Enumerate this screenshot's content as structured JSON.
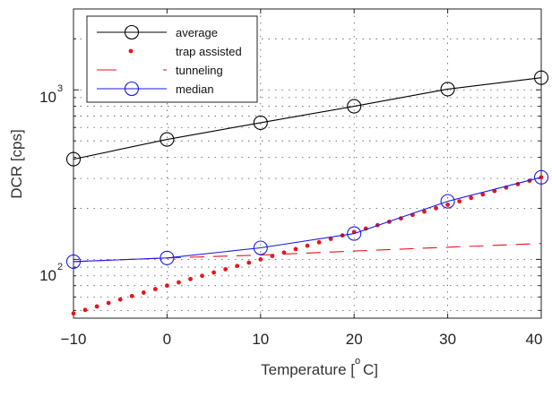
{
  "chart_data": {
    "type": "line",
    "xlabel": "Temperature [",
    "xlabel_unit": "C]",
    "xlabel_degree": "o",
    "ylabel": "DCR [cps]",
    "x_ticks": [
      "-10",
      "0",
      "10",
      "20",
      "30",
      "40"
    ],
    "x_tick_display": [
      "−10",
      "0",
      "10",
      "20",
      "30",
      "40"
    ],
    "y_tick_base": "10",
    "y_tick_exponents": [
      "2",
      "3"
    ],
    "xlim": [
      -10,
      40
    ],
    "ylim": [
      45,
      3000
    ],
    "yscale": "log",
    "grid": true,
    "legend_position": "top-left",
    "series": [
      {
        "name": "average",
        "style": "line-circle",
        "color": "#000000",
        "x": [
          -10,
          0,
          10,
          20,
          30,
          40
        ],
        "y": [
          390,
          510,
          640,
          800,
          1010,
          1180
        ]
      },
      {
        "name": "trap assisted",
        "style": "dotted",
        "color": "#e8141c",
        "x": [
          -10,
          0,
          10,
          20,
          30,
          40
        ],
        "y": [
          48,
          70,
          100,
          145,
          210,
          305
        ]
      },
      {
        "name": "tunneling",
        "style": "dashed",
        "color": "#e8141c",
        "x": [
          -10,
          0,
          10,
          20,
          30,
          40
        ],
        "y": [
          97,
          102,
          106,
          112,
          118,
          124
        ]
      },
      {
        "name": "median",
        "style": "line-circle",
        "color": "#1a1ae6",
        "x": [
          -10,
          0,
          10,
          20,
          30,
          40
        ],
        "y": [
          97,
          102,
          117,
          142,
          220,
          305
        ]
      }
    ]
  }
}
